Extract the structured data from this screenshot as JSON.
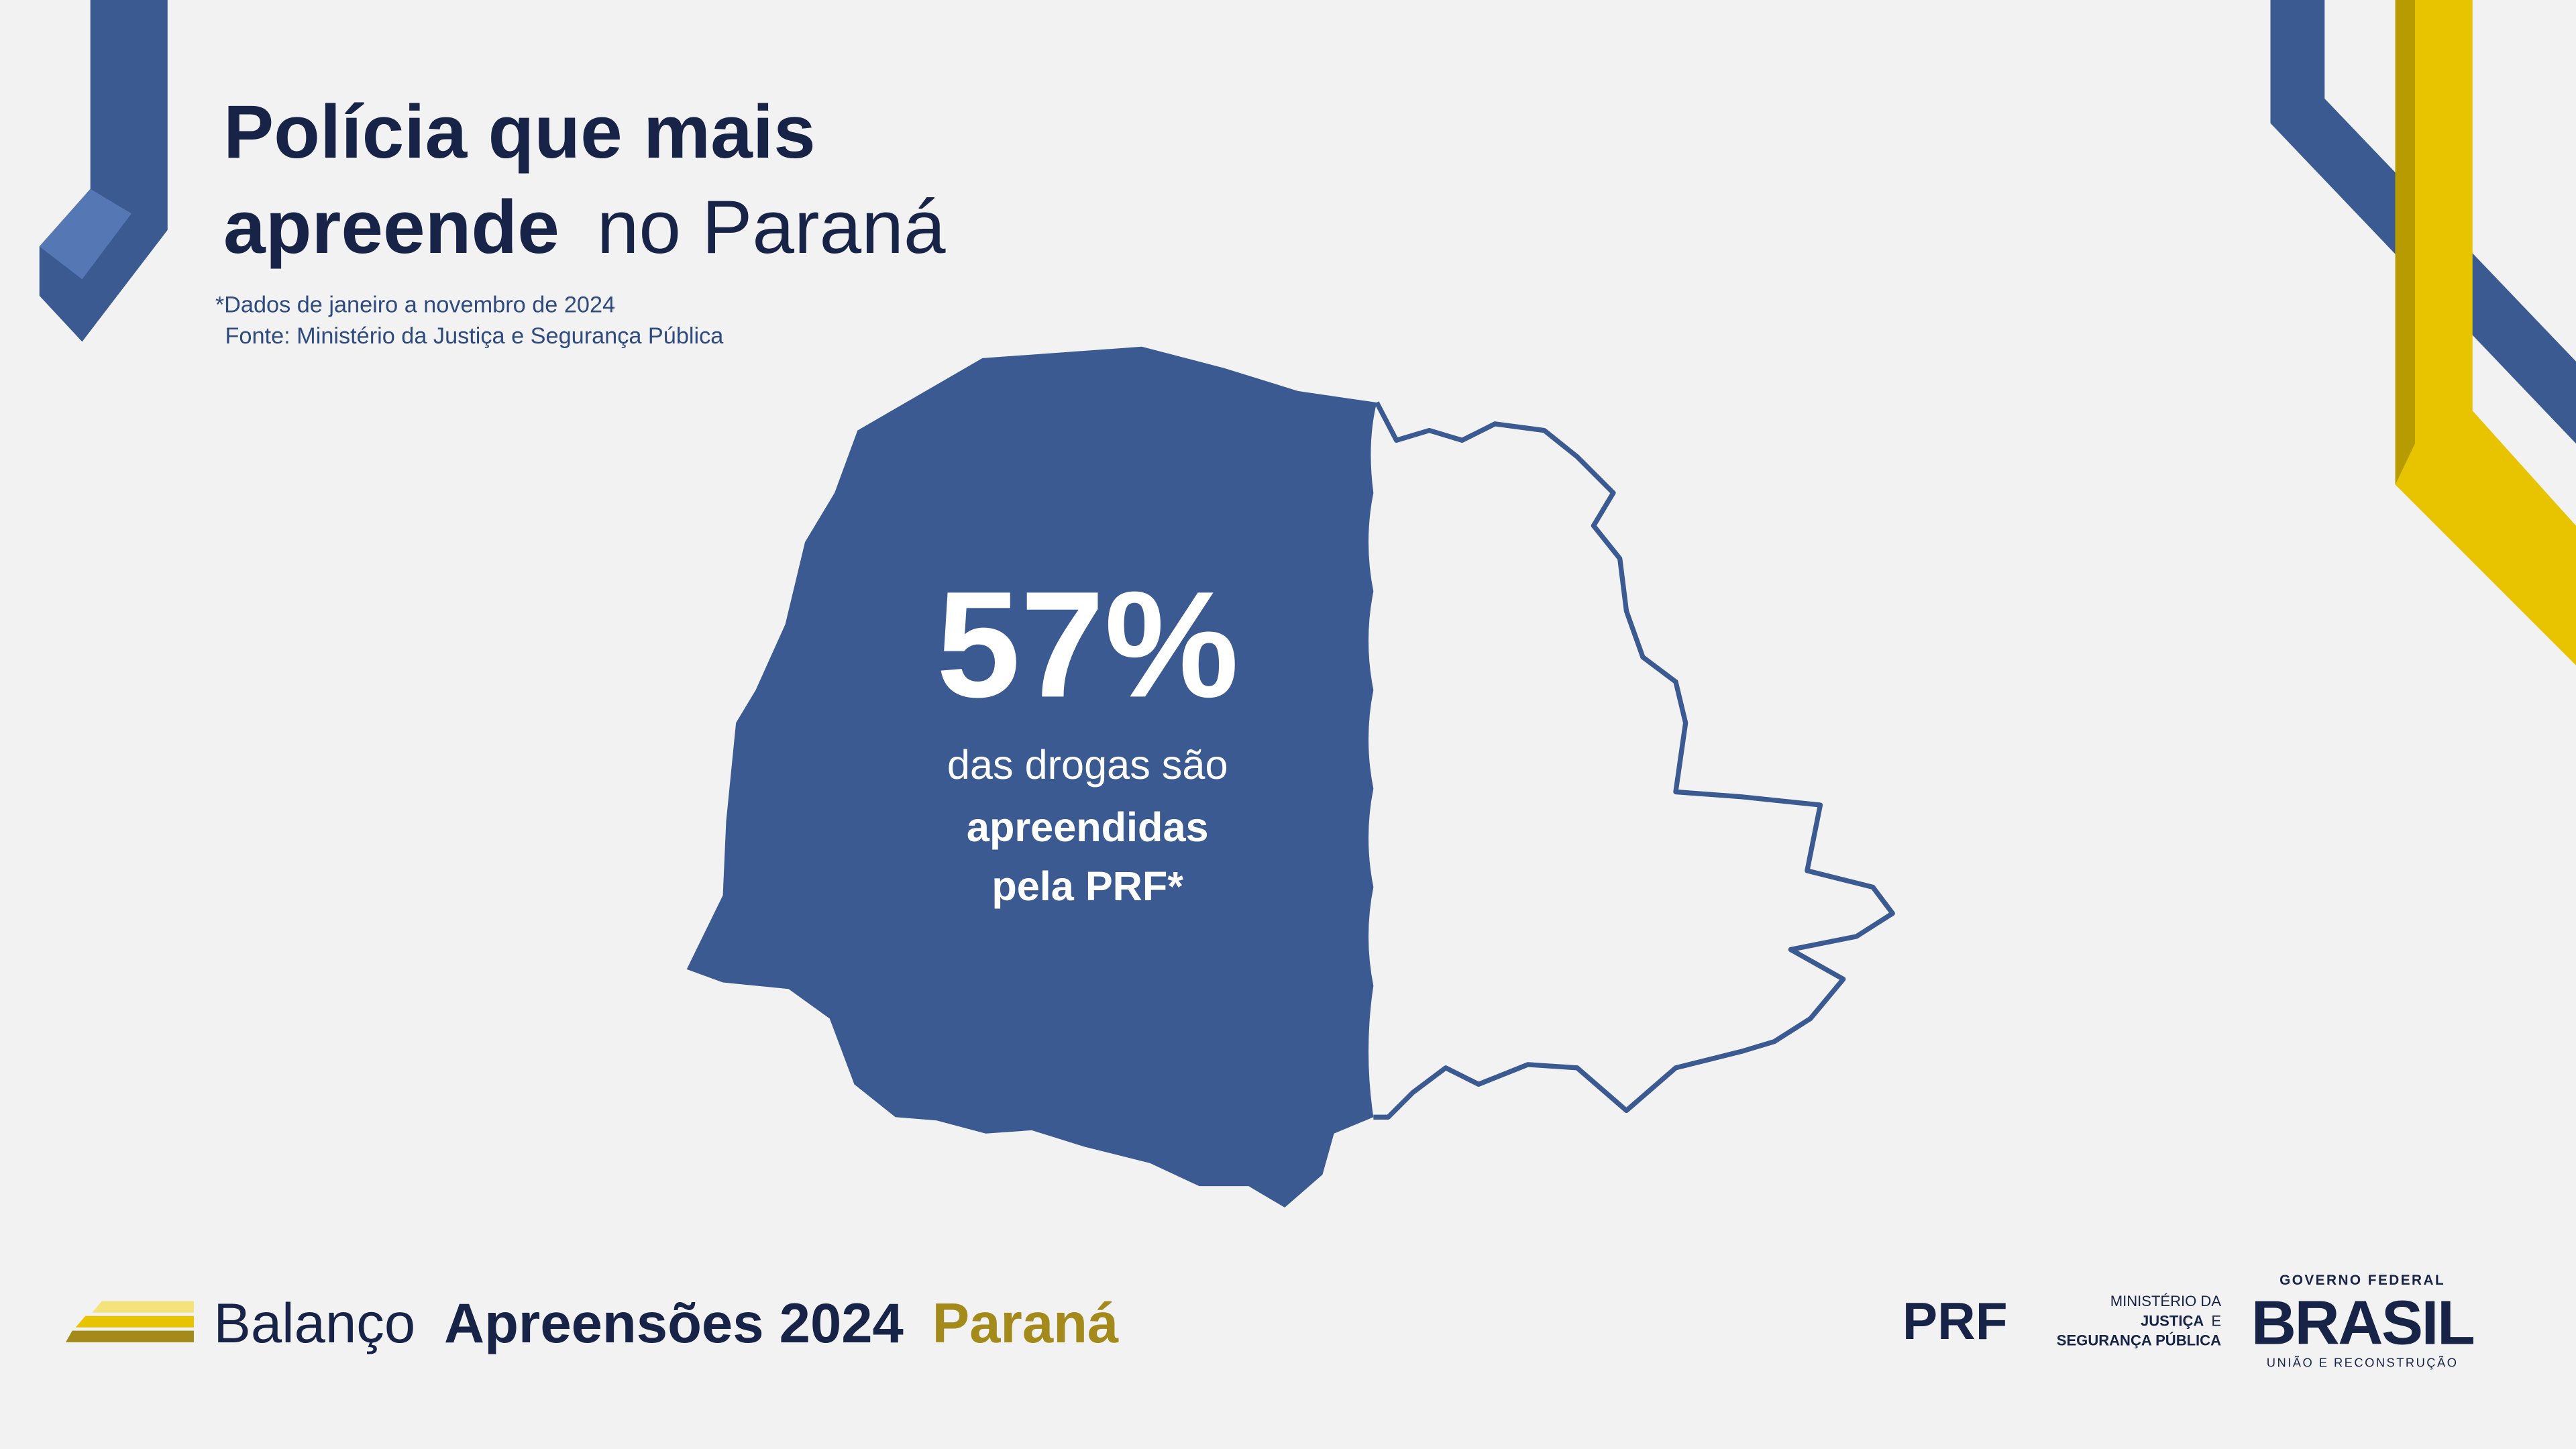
{
  "header": {
    "title_line1": "Polícia que mais",
    "title_line2_bold": "apreende",
    "title_line2_light": "no Paraná",
    "note": "*Dados de janeiro a novembro de 2024",
    "source": "Fonte: Ministério da Justiça e Segurança Pública"
  },
  "highlight": {
    "figure": "57%",
    "line1": "das drogas são",
    "line2": "apreendidas",
    "line3": "pela PRF*"
  },
  "footer": {
    "word1": "Balanço",
    "word2": "Apreensões 2024",
    "word3": "Paraná",
    "logo_prf": "PRF",
    "ministry_line1": "MINISTÉRIO DA",
    "ministry_line2_bold": "JUSTIÇA",
    "ministry_line2_regular": "E",
    "ministry_line3": "SEGURANÇA PÚBLICA",
    "gov_line1": "GOVERNO FEDERAL",
    "gov_line2": "BRASIL",
    "gov_line3": "UNIÃO E RECONSTRUÇÃO"
  }
}
